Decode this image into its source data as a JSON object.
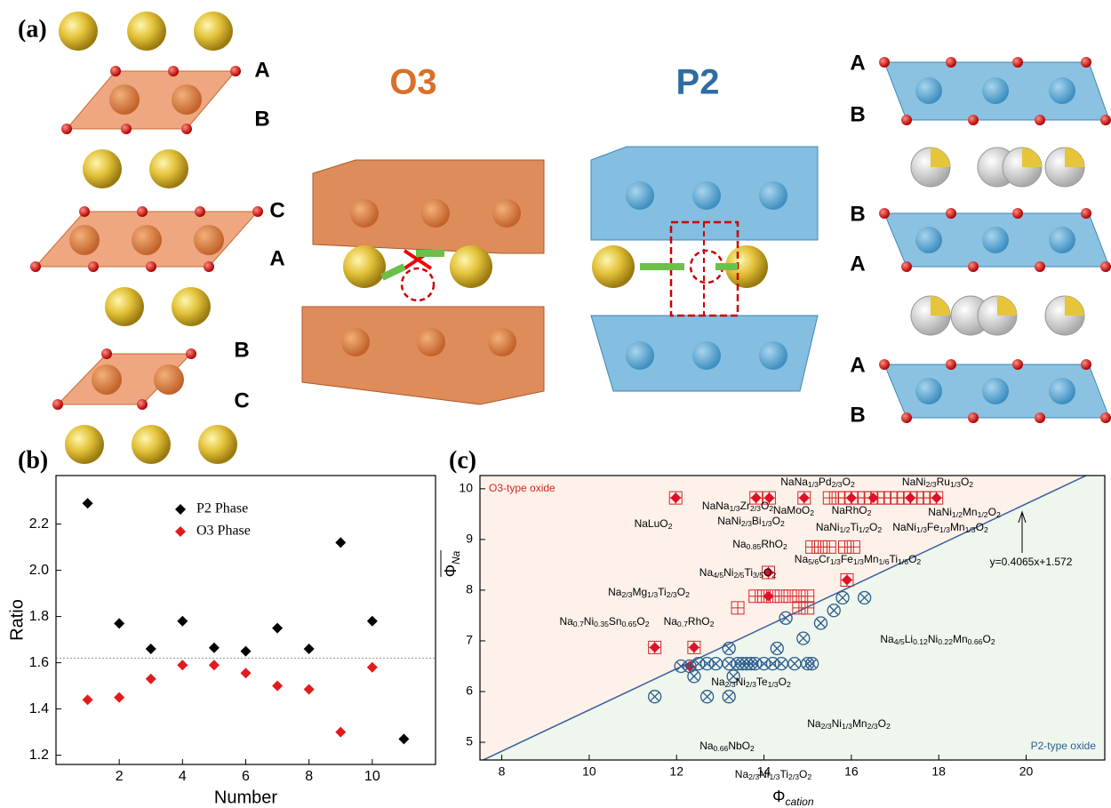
{
  "panel_labels": [
    "(a)",
    "(b)",
    "(c)"
  ],
  "diagram": {
    "title_o3": "O3",
    "title_p2": "P2",
    "left_layers": [
      "A",
      "B",
      "C",
      "A",
      "B",
      "C"
    ],
    "right_layers": [
      "A",
      "B",
      "B",
      "A",
      "A",
      "B"
    ]
  },
  "chart_data": [
    {
      "type": "scatter",
      "xlabel": "Number",
      "ylabel": "Ratio",
      "x": [
        1,
        2,
        3,
        4,
        5,
        6,
        7,
        8,
        9,
        10,
        11
      ],
      "series": [
        {
          "name": "P2 Phase",
          "color": "#000000",
          "values": [
            2.29,
            1.77,
            1.66,
            1.78,
            1.665,
            1.65,
            1.75,
            1.66,
            2.12,
            1.78,
            1.27
          ]
        },
        {
          "name": "O3 Phase",
          "color": "#e31a1c",
          "values": [
            1.44,
            1.45,
            1.53,
            1.59,
            1.59,
            1.555,
            1.5,
            1.485,
            1.3,
            1.58,
            null
          ]
        }
      ],
      "xlim": [
        0,
        12
      ],
      "xticks": [
        2,
        4,
        6,
        8,
        10
      ],
      "ylim": [
        1.16,
        2.41
      ],
      "yticks": [
        1.2,
        1.4,
        1.6,
        1.8,
        {
          "value": 2,
          "label": "2.0"
        },
        2.2
      ],
      "ref_line": 1.62,
      "legend": "top-left"
    },
    {
      "type": "scatter",
      "xlabel": {
        "symbol": "Φ",
        "subscript": "cation"
      },
      "ylabel": {
        "symbol": "Φ",
        "subscript": "Na"
      },
      "region_labels": [
        "O3-type oxide",
        "P2-type oxide"
      ],
      "fit": {
        "slope": 0.4065,
        "intercept": 1.572,
        "label": "y=0.4065x+1.572",
        "color": "#3a5f9e"
      },
      "series": [
        {
          "color": "#d62728",
          "marker": "square-grid",
          "x": [
            11.98,
            13.82,
            14.12,
            14.92,
            15.5,
            15.7,
            15.85,
            16.0,
            16.15,
            16.3,
            16.45,
            16.6,
            16.75,
            16.9,
            17.05,
            17.2,
            17.35,
            17.5,
            17.65,
            17.8,
            17.95,
            15.1,
            15.3,
            15.5,
            15.85,
            16.05,
            14.1,
            15.9,
            13.8,
            14.0,
            14.2,
            14.4,
            14.6,
            14.8,
            15.0,
            13.4,
            14.8,
            15.0,
            11.5,
            12.4
          ],
          "values": [
            9.82,
            9.82,
            9.82,
            9.82,
            9.82,
            9.82,
            9.82,
            9.82,
            9.82,
            9.82,
            9.82,
            9.82,
            9.82,
            9.82,
            9.82,
            9.82,
            9.82,
            9.82,
            9.82,
            9.82,
            9.82,
            8.85,
            8.85,
            8.85,
            8.85,
            8.85,
            8.35,
            8.2,
            7.88,
            7.88,
            7.88,
            7.88,
            7.88,
            7.88,
            7.88,
            7.65,
            7.65,
            7.65,
            6.87,
            6.87
          ]
        },
        {
          "color": "#e0102a",
          "marker": "diamond",
          "x": [
            11.98,
            13.82,
            14.12,
            14.92,
            16.0,
            16.5,
            17.35,
            17.95,
            14.1,
            15.9,
            14.1,
            11.5,
            12.4,
            12.3
          ],
          "values": [
            9.82,
            9.82,
            9.82,
            9.82,
            9.82,
            9.82,
            9.82,
            9.82,
            8.35,
            8.2,
            7.88,
            6.87,
            6.87,
            6.5
          ]
        },
        {
          "color": "#2b5d8c",
          "marker": "circle-x",
          "x": [
            11.5,
            12.1,
            12.3,
            12.5,
            12.7,
            12.9,
            13.2,
            13.4,
            13.5,
            13.6,
            13.7,
            13.8,
            14.0,
            14.2,
            14.4,
            14.7,
            15.0,
            15.1,
            13.2,
            14.3,
            14.9,
            15.3,
            15.6,
            15.8,
            16.3,
            14.5,
            12.7,
            13.2,
            13.3,
            12.4
          ],
          "values": [
            5.9,
            6.5,
            6.5,
            6.55,
            6.55,
            6.55,
            6.55,
            6.55,
            6.55,
            6.55,
            6.55,
            6.55,
            6.55,
            6.55,
            6.55,
            6.55,
            6.55,
            6.55,
            6.85,
            6.85,
            7.05,
            7.35,
            7.6,
            7.85,
            7.85,
            7.45,
            5.9,
            5.9,
            6.3,
            6.3
          ]
        }
      ],
      "xlim": [
        7.5,
        21.8
      ],
      "xticks": [
        8,
        10,
        12,
        14,
        16,
        18,
        20
      ],
      "ylim": [
        4.65,
        10.26
      ],
      "yticks": [
        5,
        6,
        7,
        8,
        9,
        10
      ],
      "annotations": [
        "NaNa1/3Pd2/3O2",
        "NaNi2/3Ru1/3O2",
        "NaLuO2",
        "NaNa1/3Zr2/3O2",
        "NaNi2/3Bi1/3O2",
        "NaMoO2",
        "NaRhO2",
        "NaNi1/2Mn1/2O2",
        "NaNi1/2Ti1/2O2",
        "NaNi1/3Fe1/3Mn1/3O2",
        "Na0.85RhO2",
        "Na5/6Cr1/3Fe1/3Mn1/6Ti1/6O2",
        "Na4/5Ni2/5Ti3/5O2",
        "Na2/3Mg1/3Ti2/3O2",
        "Na0.7Ni0.35Sn0.65O2",
        "Na0.7RhO2",
        "Na4/5Li0.12Ni0.22Mn0.66O2",
        "Na2/3Ni2/3Te1/3O2",
        "Na2/3Ni1/3Mn2/3O2",
        "Na0.66NbO2",
        "Na2/3Ni1/3Ti2/3O2"
      ]
    }
  ]
}
